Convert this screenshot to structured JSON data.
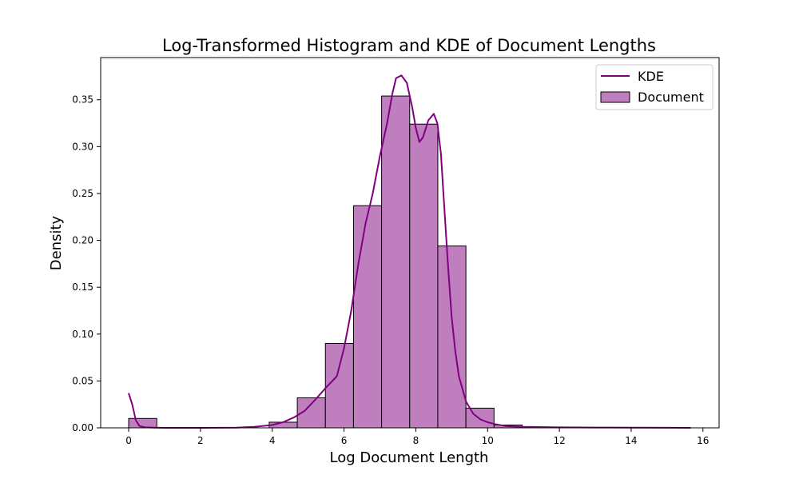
{
  "chart_data": {
    "type": "bar",
    "title": "Log-Transformed Histogram and KDE of Document Lengths",
    "xlabel": "Log Document Length",
    "ylabel": "Density",
    "xlim": [
      -0.78,
      16.45
    ],
    "ylim": [
      0,
      0.395
    ],
    "x_ticks": [
      0,
      2,
      4,
      6,
      8,
      10,
      12,
      14,
      16
    ],
    "y_ticks": [
      0.0,
      0.05,
      0.1,
      0.15,
      0.2,
      0.25,
      0.3,
      0.35
    ],
    "grid": false,
    "legend": {
      "placement": "top-right",
      "entries": [
        "KDE",
        "Document"
      ]
    },
    "colors": {
      "bar_fill": "#bf7fbf",
      "bar_edge": "#000000",
      "kde_line": "#800080"
    },
    "histogram": {
      "name": "Document",
      "bin_edges": [
        0.0,
        0.783,
        1.566,
        2.349,
        3.132,
        3.915,
        4.698,
        5.481,
        6.264,
        7.047,
        7.83,
        8.613,
        9.396,
        10.179,
        10.962,
        11.745,
        12.528,
        13.311,
        14.094,
        14.877,
        15.66
      ],
      "values": [
        0.01,
        0.0,
        0.0,
        0.0,
        0.0,
        0.006,
        0.032,
        0.09,
        0.237,
        0.354,
        0.324,
        0.194,
        0.021,
        0.003,
        0.0,
        0.0,
        0.0,
        0.0,
        0.0,
        0.0
      ]
    },
    "kde": {
      "name": "KDE",
      "x": [
        0.0,
        0.1,
        0.2,
        0.3,
        0.45,
        0.7,
        1.0,
        2.0,
        3.0,
        3.5,
        4.0,
        4.3,
        4.6,
        4.9,
        5.2,
        5.5,
        5.8,
        6.0,
        6.2,
        6.4,
        6.6,
        6.8,
        7.0,
        7.2,
        7.35,
        7.45,
        7.6,
        7.75,
        7.9,
        8.0,
        8.1,
        8.2,
        8.35,
        8.5,
        8.6,
        8.7,
        8.8,
        8.9,
        9.0,
        9.1,
        9.2,
        9.4,
        9.6,
        9.8,
        10.0,
        10.2,
        10.5,
        11.0,
        12.0,
        13.0,
        14.0,
        15.0,
        15.66
      ],
      "y": [
        0.037,
        0.025,
        0.008,
        0.002,
        0.0005,
        0.0002,
        0.0,
        0.0,
        0.0002,
        0.001,
        0.003,
        0.006,
        0.011,
        0.018,
        0.03,
        0.043,
        0.055,
        0.085,
        0.125,
        0.175,
        0.218,
        0.25,
        0.29,
        0.325,
        0.357,
        0.373,
        0.376,
        0.368,
        0.342,
        0.32,
        0.305,
        0.31,
        0.328,
        0.335,
        0.325,
        0.292,
        0.232,
        0.172,
        0.118,
        0.082,
        0.055,
        0.028,
        0.015,
        0.009,
        0.006,
        0.004,
        0.002,
        0.001,
        0.0005,
        0.0003,
        0.0002,
        0.0001,
        0.0
      ]
    }
  }
}
